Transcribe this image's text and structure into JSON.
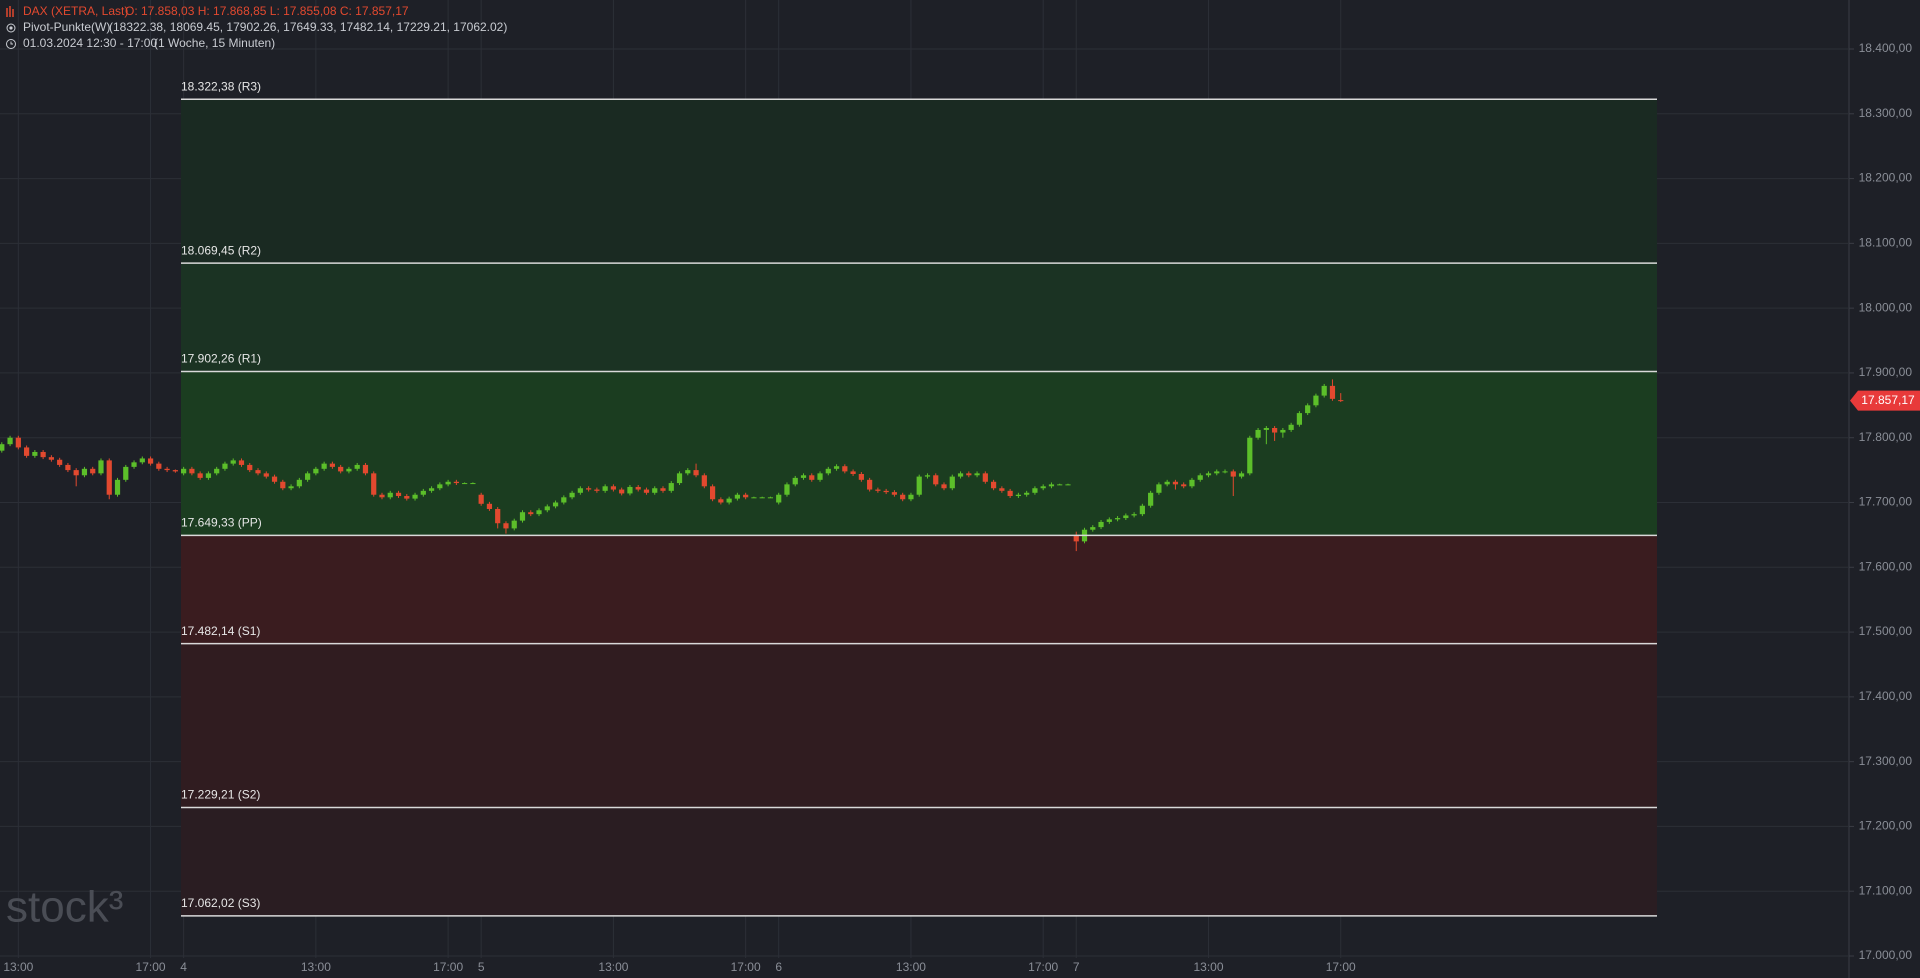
{
  "chart_data": {
    "type": "candlestick",
    "header": {
      "symbol": "DAX (XETRA, Last)",
      "quote": "O: 17.858,03  H: 17.868,85  L: 17.855,08  C: 17.857,17",
      "indicator": "Pivot-Punkte(W)",
      "indicator_values": "(18322.38,  18069.45,  17902.26,  17649.33,  17482.14,  17229.21,  17062.02)",
      "range": "01.03.2024 12:30 - 17:00",
      "interval": "(1 Woche, 15 Minuten)"
    },
    "watermark": "stock³",
    "up_color": "#5cbf2a",
    "down_color": "#e2492f",
    "ylim": [
      17000,
      18400
    ],
    "yticks": [
      {
        "value": 17000,
        "label": "17.000,00"
      },
      {
        "value": 17100,
        "label": "17.100,00"
      },
      {
        "value": 17200,
        "label": "17.200,00"
      },
      {
        "value": 17300,
        "label": "17.300,00"
      },
      {
        "value": 17400,
        "label": "17.400,00"
      },
      {
        "value": 17500,
        "label": "17.500,00"
      },
      {
        "value": 17600,
        "label": "17.600,00"
      },
      {
        "value": 17700,
        "label": "17.700,00"
      },
      {
        "value": 17800,
        "label": "17.800,00"
      },
      {
        "value": 17900,
        "label": "17.900,00"
      },
      {
        "value": 18000,
        "label": "18.000,00"
      },
      {
        "value": 18100,
        "label": "18.100,00"
      },
      {
        "value": 18200,
        "label": "18.200,00"
      },
      {
        "value": 18300,
        "label": "18.300,00"
      },
      {
        "value": 18400,
        "label": "18.400,00"
      }
    ],
    "grid": true,
    "pivots": [
      {
        "value": 18322.38,
        "label": "18.322,38 (R3)"
      },
      {
        "value": 18069.45,
        "label": "18.069,45 (R2)"
      },
      {
        "value": 17902.26,
        "label": "17.902,26 (R1)"
      },
      {
        "value": 17649.33,
        "label": "17.649,33 (PP)"
      },
      {
        "value": 17482.14,
        "label": "17.482,14 (S1)"
      },
      {
        "value": 17229.21,
        "label": "17.229,21 (S2)"
      },
      {
        "value": 17062.02,
        "label": "17.062,02 (S3)"
      }
    ],
    "last_price": {
      "value": 17857.17,
      "label": "17.857,17"
    },
    "categories": [
      null,
      null,
      "13:00",
      null,
      null,
      null,
      null,
      null,
      null,
      null,
      null,
      null,
      null,
      null,
      null,
      null,
      null,
      null,
      "17:00",
      null,
      null,
      null,
      "4",
      null,
      null,
      null,
      null,
      null,
      null,
      null,
      null,
      null,
      null,
      null,
      null,
      null,
      null,
      null,
      "13:00",
      null,
      null,
      null,
      null,
      null,
      null,
      null,
      null,
      null,
      null,
      null,
      null,
      null,
      null,
      null,
      "17:00",
      null,
      null,
      null,
      "5",
      null,
      null,
      null,
      null,
      null,
      null,
      null,
      null,
      null,
      null,
      null,
      null,
      null,
      null,
      null,
      "13:00",
      null,
      null,
      null,
      null,
      null,
      null,
      null,
      null,
      null,
      null,
      null,
      null,
      null,
      null,
      null,
      "17:00",
      null,
      null,
      null,
      "6",
      null,
      null,
      null,
      null,
      null,
      null,
      null,
      null,
      null,
      null,
      null,
      null,
      null,
      null,
      null,
      "13:00",
      null,
      null,
      null,
      null,
      null,
      null,
      null,
      null,
      null,
      null,
      null,
      null,
      null,
      null,
      null,
      "17:00",
      null,
      null,
      null,
      "7",
      null,
      null,
      null,
      null,
      null,
      null,
      null,
      null,
      null,
      null,
      null,
      null,
      null,
      null,
      null,
      "13:00",
      null,
      null,
      null,
      null,
      null,
      null,
      null,
      null,
      null,
      null,
      null,
      null,
      null,
      null,
      null,
      "17:00"
    ],
    "candles": [
      [
        17780,
        17793,
        17777,
        17790
      ],
      [
        17790,
        17803,
        17787,
        17800
      ],
      [
        17800,
        17803,
        17782,
        17785
      ],
      [
        17785,
        17788,
        17769,
        17772
      ],
      [
        17772,
        17781,
        17769,
        17778
      ],
      [
        17778,
        17781,
        17767,
        17770
      ],
      [
        17770,
        17773,
        17763,
        17766
      ],
      [
        17766,
        17769,
        17755,
        17758
      ],
      [
        17758,
        17761,
        17747,
        17750
      ],
      [
        17750,
        17753,
        17725,
        17742
      ],
      [
        17742,
        17755,
        17739,
        17752
      ],
      [
        17752,
        17755,
        17742,
        17745
      ],
      [
        17745,
        17768,
        17742,
        17765
      ],
      [
        17765,
        17768,
        17705,
        17712
      ],
      [
        17712,
        17738,
        17709,
        17735
      ],
      [
        17735,
        17758,
        17732,
        17755
      ],
      [
        17755,
        17765,
        17752,
        17762
      ],
      [
        17762,
        17771,
        17759,
        17768
      ],
      [
        17768,
        17771,
        17757,
        17760
      ],
      [
        17760,
        17763,
        17749,
        17752
      ],
      [
        17752,
        17755,
        17747,
        17750
      ],
      [
        17750,
        17751,
        17746,
        17748
      ],
      [
        17745,
        17755,
        17742,
        17752
      ],
      [
        17752,
        17755,
        17742,
        17745
      ],
      [
        17745,
        17748,
        17735,
        17738
      ],
      [
        17738,
        17748,
        17735,
        17745
      ],
      [
        17745,
        17755,
        17742,
        17752
      ],
      [
        17752,
        17763,
        17749,
        17760
      ],
      [
        17760,
        17768,
        17757,
        17765
      ],
      [
        17765,
        17768,
        17755,
        17758
      ],
      [
        17758,
        17761,
        17747,
        17750
      ],
      [
        17750,
        17753,
        17742,
        17745
      ],
      [
        17745,
        17748,
        17737,
        17740
      ],
      [
        17740,
        17743,
        17729,
        17732
      ],
      [
        17732,
        17735,
        17719,
        17722
      ],
      [
        17722,
        17728,
        17719,
        17725
      ],
      [
        17725,
        17738,
        17722,
        17735
      ],
      [
        17735,
        17748,
        17732,
        17745
      ],
      [
        17745,
        17755,
        17742,
        17752
      ],
      [
        17752,
        17763,
        17749,
        17760
      ],
      [
        17760,
        17763,
        17752,
        17755
      ],
      [
        17755,
        17758,
        17745,
        17748
      ],
      [
        17748,
        17755,
        17745,
        17752
      ],
      [
        17752,
        17761,
        17749,
        17758
      ],
      [
        17758,
        17761,
        17742,
        17745
      ],
      [
        17745,
        17748,
        17709,
        17712
      ],
      [
        17712,
        17715,
        17705,
        17708
      ],
      [
        17708,
        17718,
        17705,
        17715
      ],
      [
        17715,
        17718,
        17707,
        17710
      ],
      [
        17710,
        17713,
        17703,
        17706
      ],
      [
        17706,
        17715,
        17703,
        17712
      ],
      [
        17712,
        17721,
        17709,
        17718
      ],
      [
        17718,
        17725,
        17715,
        17722
      ],
      [
        17722,
        17731,
        17719,
        17728
      ],
      [
        17728,
        17735,
        17725,
        17732
      ],
      [
        17732,
        17735,
        17727,
        17730
      ],
      [
        17730,
        17731,
        17729,
        17730
      ],
      [
        17730,
        17731,
        17729,
        17730
      ],
      [
        17712,
        17715,
        17695,
        17698
      ],
      [
        17698,
        17701,
        17687,
        17690
      ],
      [
        17690,
        17693,
        17660,
        17668
      ],
      [
        17668,
        17671,
        17652,
        17660
      ],
      [
        17660,
        17675,
        17657,
        17672
      ],
      [
        17672,
        17688,
        17669,
        17685
      ],
      [
        17685,
        17688,
        17679,
        17682
      ],
      [
        17682,
        17691,
        17679,
        17688
      ],
      [
        17688,
        17697,
        17685,
        17694
      ],
      [
        17694,
        17703,
        17691,
        17700
      ],
      [
        17700,
        17711,
        17697,
        17708
      ],
      [
        17708,
        17718,
        17705,
        17715
      ],
      [
        17715,
        17725,
        17712,
        17722
      ],
      [
        17722,
        17725,
        17717,
        17720
      ],
      [
        17720,
        17723,
        17715,
        17718
      ],
      [
        17718,
        17728,
        17715,
        17725
      ],
      [
        17725,
        17728,
        17717,
        17720
      ],
      [
        17720,
        17723,
        17711,
        17714
      ],
      [
        17714,
        17727,
        17711,
        17724
      ],
      [
        17724,
        17727,
        17717,
        17720
      ],
      [
        17720,
        17723,
        17712,
        17715
      ],
      [
        17715,
        17725,
        17712,
        17722
      ],
      [
        17722,
        17725,
        17715,
        17718
      ],
      [
        17718,
        17733,
        17715,
        17730
      ],
      [
        17730,
        17748,
        17727,
        17745
      ],
      [
        17745,
        17753,
        17742,
        17750
      ],
      [
        17750,
        17760,
        17739,
        17742
      ],
      [
        17742,
        17745,
        17722,
        17725
      ],
      [
        17725,
        17728,
        17702,
        17705
      ],
      [
        17705,
        17708,
        17697,
        17700
      ],
      [
        17700,
        17709,
        17697,
        17706
      ],
      [
        17706,
        17715,
        17703,
        17712
      ],
      [
        17712,
        17715,
        17705,
        17708
      ],
      [
        17708,
        17709,
        17707,
        17708
      ],
      [
        17708,
        17709,
        17707,
        17708
      ],
      [
        17708,
        17709,
        17707,
        17708
      ],
      [
        17700,
        17715,
        17697,
        17712
      ],
      [
        17712,
        17731,
        17709,
        17728
      ],
      [
        17728,
        17741,
        17725,
        17738
      ],
      [
        17738,
        17745,
        17735,
        17742
      ],
      [
        17742,
        17745,
        17732,
        17735
      ],
      [
        17735,
        17748,
        17732,
        17745
      ],
      [
        17745,
        17755,
        17742,
        17752
      ],
      [
        17752,
        17759,
        17749,
        17756
      ],
      [
        17756,
        17759,
        17745,
        17748
      ],
      [
        17748,
        17751,
        17741,
        17744
      ],
      [
        17744,
        17747,
        17732,
        17735
      ],
      [
        17735,
        17738,
        17717,
        17720
      ],
      [
        17720,
        17723,
        17715,
        17718
      ],
      [
        17718,
        17721,
        17713,
        17716
      ],
      [
        17716,
        17719,
        17709,
        17712
      ],
      [
        17712,
        17715,
        17702,
        17705
      ],
      [
        17705,
        17715,
        17702,
        17712
      ],
      [
        17712,
        17743,
        17709,
        17740
      ],
      [
        17740,
        17745,
        17737,
        17742
      ],
      [
        17742,
        17745,
        17725,
        17728
      ],
      [
        17728,
        17731,
        17719,
        17722
      ],
      [
        17722,
        17743,
        17719,
        17740
      ],
      [
        17740,
        17748,
        17737,
        17745
      ],
      [
        17745,
        17748,
        17739,
        17742
      ],
      [
        17742,
        17748,
        17739,
        17745
      ],
      [
        17745,
        17748,
        17729,
        17732
      ],
      [
        17732,
        17735,
        17719,
        17722
      ],
      [
        17722,
        17725,
        17715,
        17718
      ],
      [
        17718,
        17721,
        17707,
        17710
      ],
      [
        17710,
        17715,
        17707,
        17712
      ],
      [
        17712,
        17718,
        17709,
        17715
      ],
      [
        17715,
        17725,
        17712,
        17722
      ],
      [
        17722,
        17728,
        17719,
        17725
      ],
      [
        17725,
        17731,
        17722,
        17728
      ],
      [
        17728,
        17729,
        17727,
        17728
      ],
      [
        17728,
        17729,
        17727,
        17728
      ],
      [
        17650,
        17655,
        17625,
        17640
      ],
      [
        17640,
        17661,
        17637,
        17658
      ],
      [
        17658,
        17665,
        17655,
        17662
      ],
      [
        17662,
        17673,
        17659,
        17670
      ],
      [
        17670,
        17677,
        17667,
        17674
      ],
      [
        17674,
        17679,
        17671,
        17676
      ],
      [
        17676,
        17683,
        17673,
        17680
      ],
      [
        17680,
        17685,
        17677,
        17682
      ],
      [
        17682,
        17698,
        17679,
        17695
      ],
      [
        17695,
        17718,
        17692,
        17715
      ],
      [
        17715,
        17731,
        17712,
        17728
      ],
      [
        17728,
        17735,
        17725,
        17732
      ],
      [
        17732,
        17735,
        17720,
        17728
      ],
      [
        17728,
        17731,
        17722,
        17725
      ],
      [
        17725,
        17738,
        17722,
        17735
      ],
      [
        17735,
        17745,
        17732,
        17742
      ],
      [
        17742,
        17748,
        17739,
        17745
      ],
      [
        17745,
        17751,
        17742,
        17748
      ],
      [
        17748,
        17751,
        17745,
        17748
      ],
      [
        17748,
        17751,
        17710,
        17740
      ],
      [
        17740,
        17748,
        17737,
        17745
      ],
      [
        17745,
        17803,
        17742,
        17800
      ],
      [
        17800,
        17815,
        17797,
        17812
      ],
      [
        17812,
        17818,
        17790,
        17815
      ],
      [
        17815,
        17818,
        17795,
        17808
      ],
      [
        17808,
        17815,
        17800,
        17812
      ],
      [
        17812,
        17823,
        17809,
        17820
      ],
      [
        17820,
        17841,
        17817,
        17838
      ],
      [
        17838,
        17853,
        17835,
        17850
      ],
      [
        17850,
        17868,
        17847,
        17865
      ],
      [
        17865,
        17883,
        17862,
        17880
      ],
      [
        17880,
        17890,
        17857,
        17860
      ],
      [
        17858.03,
        17868.85,
        17855.08,
        17857.17
      ]
    ]
  }
}
